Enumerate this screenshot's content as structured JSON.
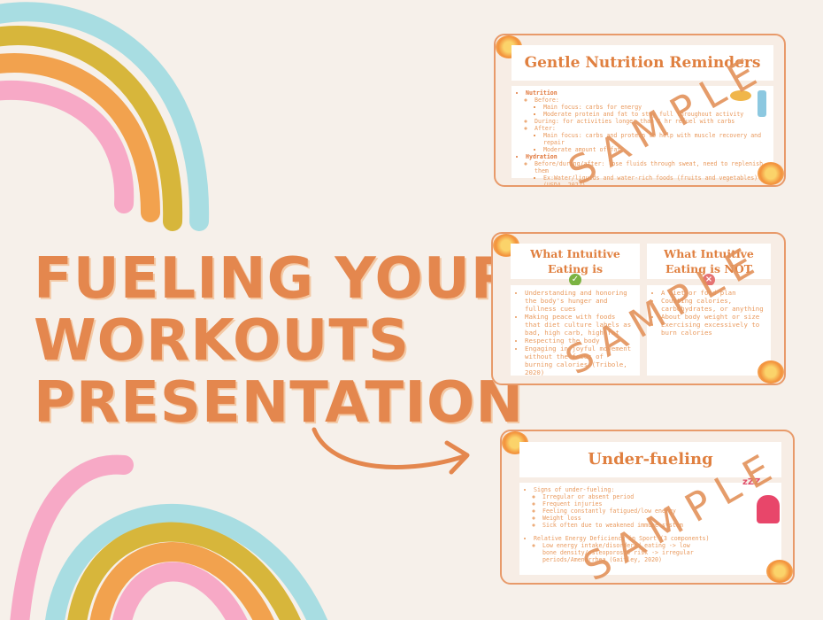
{
  "title_lines": [
    "FUELING YOUR",
    "WORKOUTS",
    "PRESENTATION"
  ],
  "watermark": "SAMPLE",
  "colors": {
    "accent": "#e4874e",
    "background": "#f6f0ea",
    "rainbow": [
      "#a8dde2",
      "#d7b63b",
      "#f2a24e",
      "#f7a9c6"
    ]
  },
  "slides": [
    {
      "title": "Gentle Nutrition Reminders",
      "nutrition": "Nutrition",
      "before": "Before:",
      "b1": "Main focus: carbs for energy",
      "b2": "Moderate protein and fat to stay full throughout activity",
      "during": "During: for activities longer than 1 hr refuel with carbs",
      "after": "After:",
      "a1": "Main focus: carbs and protein to help with muscle recovery and repair",
      "a2": "Moderate amount of fat",
      "hydration": "Hydration",
      "h1": "Before/during/after: lose fluids through sweat, need to replenish them",
      "h2": "Ex:Water/liquids and water-rich foods (fruits and vegetables) (USDA, 2022)"
    },
    {
      "left_title": "What Intuitive Eating is",
      "right_title": "What Intuitive Eating is NOT",
      "is": [
        "Understanding and honoring the body's hunger and fullness cues",
        "Making peace with foods that diet culture labels as bad, high carb, high fat",
        "Respecting the body",
        "Engaging in joyful movement without the focus of burning calories (Tribole, 2020)"
      ],
      "is_not": [
        "A diet or food plan",
        "Counting calories, carbohydrates, or anything",
        "About body weight or size",
        "Exercising excessively to burn calories"
      ],
      "check_icon": "check-circle",
      "x_icon": "x-circle"
    },
    {
      "title": "Under-fueling",
      "signs": "Signs of under-fueling:",
      "sign_items": [
        "Irregular or absent period",
        "Frequent injuries",
        "Feeling constantly fatigued/low energy",
        "Weight loss",
        "Sick often due to weakened immune system"
      ],
      "reds": "Relative Energy Deficiency in Sport (3 components)",
      "reds_item": "Low energy intake/disordered eating -> low bone density/osteoporosis risk -> irregular periods/Amenorrhea (Gaitley, 2020)",
      "sleep_icon": "zzz"
    }
  ]
}
